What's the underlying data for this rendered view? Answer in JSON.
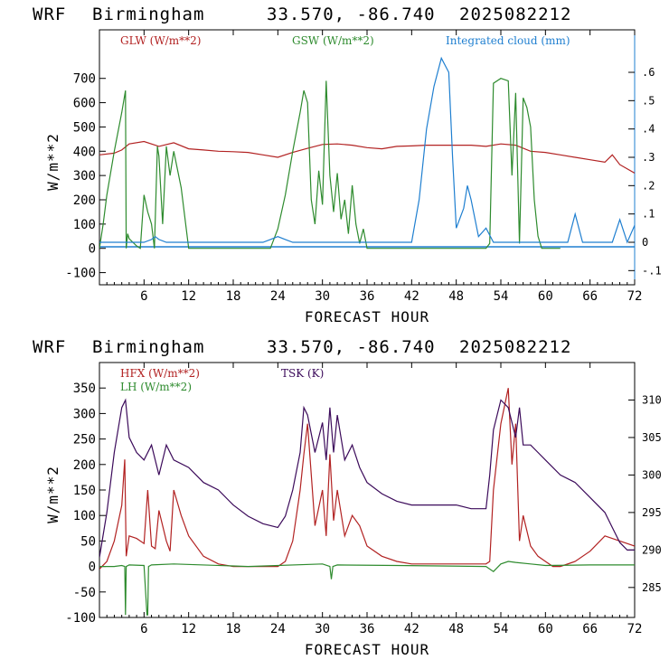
{
  "charts": [
    {
      "header": {
        "model": "WRF",
        "city": "Birmingham",
        "coords": "33.570, -86.740",
        "init": "2025082212"
      },
      "xlabel": "FORECAST HOUR",
      "ylabel": "W/m**2",
      "legend": [
        {
          "label": "GLW (W/m**2)",
          "color": "#b22222"
        },
        {
          "label": "GSW (W/m**2)",
          "color": "#2e8b2e"
        },
        {
          "label": "Integrated cloud (mm)",
          "color": "#1f7fd0"
        }
      ]
    },
    {
      "header": {
        "model": "WRF",
        "city": "Birmingham",
        "coords": "33.570, -86.740",
        "init": "2025082212"
      },
      "xlabel": "FORECAST HOUR",
      "ylabel": "W/m**2",
      "legend": [
        {
          "label": "HFX (W/m**2)",
          "color": "#b22222"
        },
        {
          "label": "LH  (W/m**2)",
          "color": "#2e8b2e"
        },
        {
          "label": "TSK (K)",
          "color": "#3b0a5a"
        }
      ]
    }
  ],
  "chart_data": [
    {
      "type": "line",
      "xlim": [
        0,
        72
      ],
      "ylim": [
        -150,
        900
      ],
      "y2lim": [
        -0.15,
        0.75
      ],
      "x_ticks": [
        "6",
        "12",
        "18",
        "24",
        "30",
        "36",
        "42",
        "48",
        "54",
        "60",
        "66",
        "72"
      ],
      "y_ticks": [
        "-100",
        "0",
        "100",
        "200",
        "300",
        "400",
        "500",
        "600",
        "700"
      ],
      "y2_ticks": [
        "-.1",
        "0",
        ".1",
        ".2",
        ".3",
        ".4",
        ".5",
        ".6"
      ],
      "series": [
        {
          "name": "GLW (W/m**2)",
          "axis": "left",
          "color": "#b22222",
          "x": [
            0,
            2,
            3,
            4,
            6,
            8,
            10,
            12,
            14,
            16,
            18,
            20,
            22,
            24,
            26,
            28,
            30,
            32,
            34,
            36,
            38,
            40,
            42,
            44,
            46,
            48,
            50,
            52,
            54,
            56,
            58,
            60,
            62,
            64,
            66,
            68,
            69,
            70,
            72
          ],
          "y": [
            385,
            392,
            405,
            430,
            440,
            420,
            435,
            410,
            405,
            400,
            398,
            395,
            385,
            375,
            395,
            412,
            428,
            430,
            425,
            415,
            410,
            420,
            422,
            425,
            425,
            425,
            425,
            420,
            430,
            425,
            400,
            395,
            385,
            375,
            365,
            355,
            385,
            345,
            310
          ]
        },
        {
          "name": "GSW (W/m**2)",
          "axis": "left",
          "color": "#2e8b2e",
          "x": [
            0,
            0.5,
            1,
            2,
            3,
            3.5,
            3.6,
            3.8,
            4,
            5,
            5.5,
            6,
            6.5,
            7,
            7.4,
            7.8,
            8,
            8.5,
            9,
            9.5,
            10,
            11,
            12,
            23,
            24,
            25,
            26,
            27,
            27.5,
            28,
            28.5,
            29,
            29.5,
            30,
            30.5,
            31,
            31.5,
            32,
            32.5,
            33,
            33.5,
            34,
            34.5,
            35,
            35.5,
            36,
            37,
            38,
            44,
            46,
            48,
            50,
            51,
            52,
            52.5,
            53,
            54,
            55,
            55.5,
            56,
            56.5,
            57,
            57.5,
            58,
            58.5,
            59,
            59.5,
            60,
            61,
            62
          ],
          "y": [
            0,
            100,
            220,
            400,
            560,
            650,
            0,
            60,
            40,
            10,
            0,
            220,
            150,
            100,
            0,
            420,
            380,
            100,
            420,
            300,
            400,
            250,
            0,
            0,
            80,
            220,
            400,
            560,
            650,
            600,
            200,
            100,
            320,
            180,
            690,
            300,
            150,
            310,
            120,
            200,
            60,
            260,
            100,
            20,
            80,
            0,
            0,
            0,
            0,
            0,
            0,
            0,
            0,
            0,
            20,
            680,
            700,
            690,
            300,
            640,
            20,
            620,
            580,
            500,
            200,
            50,
            0,
            0,
            0,
            0
          ]
        },
        {
          "name": "Integrated cloud (mm)",
          "axis": "right",
          "color": "#1f7fd0",
          "x": [
            0,
            6,
            7,
            7.5,
            8,
            9,
            22,
            23,
            24,
            25,
            26,
            42,
            43,
            44,
            45,
            46,
            47,
            47.5,
            48,
            49,
            49.5,
            50,
            51,
            52,
            53,
            54,
            63,
            64,
            65,
            69,
            70,
            71,
            72
          ],
          "y": [
            0,
            0,
            0.01,
            0.02,
            0.01,
            0,
            0,
            0.01,
            0.02,
            0.01,
            0,
            0,
            0.15,
            0.4,
            0.55,
            0.65,
            0.6,
            0.3,
            0.05,
            0.12,
            0.2,
            0.15,
            0.02,
            0.05,
            0,
            0,
            0,
            0.1,
            0,
            0,
            0.08,
            0,
            0.06
          ]
        }
      ]
    },
    {
      "type": "line",
      "xlim": [
        0,
        72
      ],
      "ylim": [
        -100,
        400
      ],
      "y2lim": [
        281,
        315
      ],
      "x_ticks": [
        "6",
        "12",
        "18",
        "24",
        "30",
        "36",
        "42",
        "48",
        "54",
        "60",
        "66",
        "72"
      ],
      "y_ticks": [
        "-100",
        "-50",
        "0",
        "50",
        "100",
        "150",
        "200",
        "250",
        "300",
        "350"
      ],
      "y2_ticks": [
        "285",
        "290",
        "295",
        "300",
        "305",
        "310"
      ],
      "series": [
        {
          "name": "HFX (W/m**2)",
          "axis": "left",
          "color": "#b22222",
          "x": [
            0,
            1,
            2,
            3,
            3.4,
            3.6,
            4,
            5,
            6,
            6.5,
            7,
            7.5,
            8,
            9,
            9.5,
            10,
            11,
            12,
            14,
            16,
            18,
            20,
            22,
            24,
            25,
            26,
            27,
            27.5,
            28,
            28.5,
            29,
            30,
            30.5,
            31,
            31.5,
            32,
            33,
            34,
            35,
            36,
            38,
            40,
            42,
            44,
            46,
            48,
            50,
            52,
            52.5,
            53,
            54,
            55,
            55.5,
            56,
            56.5,
            57,
            58,
            59,
            60,
            61,
            62,
            64,
            66,
            68,
            70,
            72
          ],
          "y": [
            -5,
            10,
            50,
            120,
            210,
            20,
            60,
            55,
            45,
            150,
            40,
            35,
            110,
            50,
            30,
            150,
            100,
            60,
            20,
            5,
            0,
            0,
            0,
            0,
            10,
            50,
            150,
            220,
            280,
            180,
            80,
            150,
            60,
            220,
            90,
            150,
            60,
            100,
            80,
            40,
            20,
            10,
            5,
            5,
            5,
            5,
            5,
            5,
            10,
            150,
            280,
            350,
            200,
            280,
            50,
            100,
            40,
            20,
            10,
            0,
            0,
            10,
            30,
            60,
            50,
            40
          ]
        },
        {
          "name": "LH  (W/m**2)",
          "axis": "left",
          "color": "#2e8b2e",
          "x": [
            0,
            2,
            3,
            3.4,
            3.5,
            3.6,
            4,
            6,
            6.4,
            6.5,
            6.6,
            7,
            10,
            20,
            30,
            31,
            31.2,
            31.4,
            32,
            40,
            52,
            53,
            54,
            55,
            56,
            58,
            60,
            66,
            72
          ],
          "y": [
            0,
            0,
            2,
            0,
            -95,
            0,
            3,
            2,
            -95,
            -95,
            0,
            3,
            5,
            0,
            5,
            0,
            -25,
            0,
            3,
            2,
            0,
            -10,
            5,
            10,
            8,
            5,
            2,
            3,
            3
          ]
        },
        {
          "name": "TSK (K)",
          "axis": "right",
          "color": "#3b0a5a",
          "x": [
            0,
            1,
            2,
            3,
            3.5,
            4,
            5,
            6,
            7,
            8,
            9,
            10,
            12,
            14,
            16,
            18,
            20,
            22,
            24,
            25,
            26,
            27,
            27.5,
            28,
            29,
            30,
            30.5,
            31,
            31.5,
            32,
            33,
            34,
            35,
            36,
            38,
            40,
            42,
            44,
            46,
            48,
            50,
            52,
            52.5,
            53,
            54,
            55,
            56,
            56.5,
            57,
            58,
            59,
            60,
            62,
            64,
            66,
            68,
            69,
            70,
            71,
            72
          ],
          "y": [
            289,
            295,
            303,
            309,
            310,
            305,
            303,
            302,
            304,
            300,
            304,
            302,
            301,
            299,
            298,
            296,
            294.5,
            293.5,
            293,
            294.5,
            298,
            303,
            309,
            308,
            303,
            307,
            302,
            309,
            303,
            308,
            302,
            304,
            301,
            299,
            297.5,
            296.5,
            296,
            296,
            296,
            296,
            295.5,
            295.5,
            300,
            306,
            310,
            309,
            305,
            309,
            304,
            304,
            303,
            302,
            300,
            299,
            297,
            295,
            293,
            291,
            290,
            290
          ]
        }
      ]
    }
  ]
}
